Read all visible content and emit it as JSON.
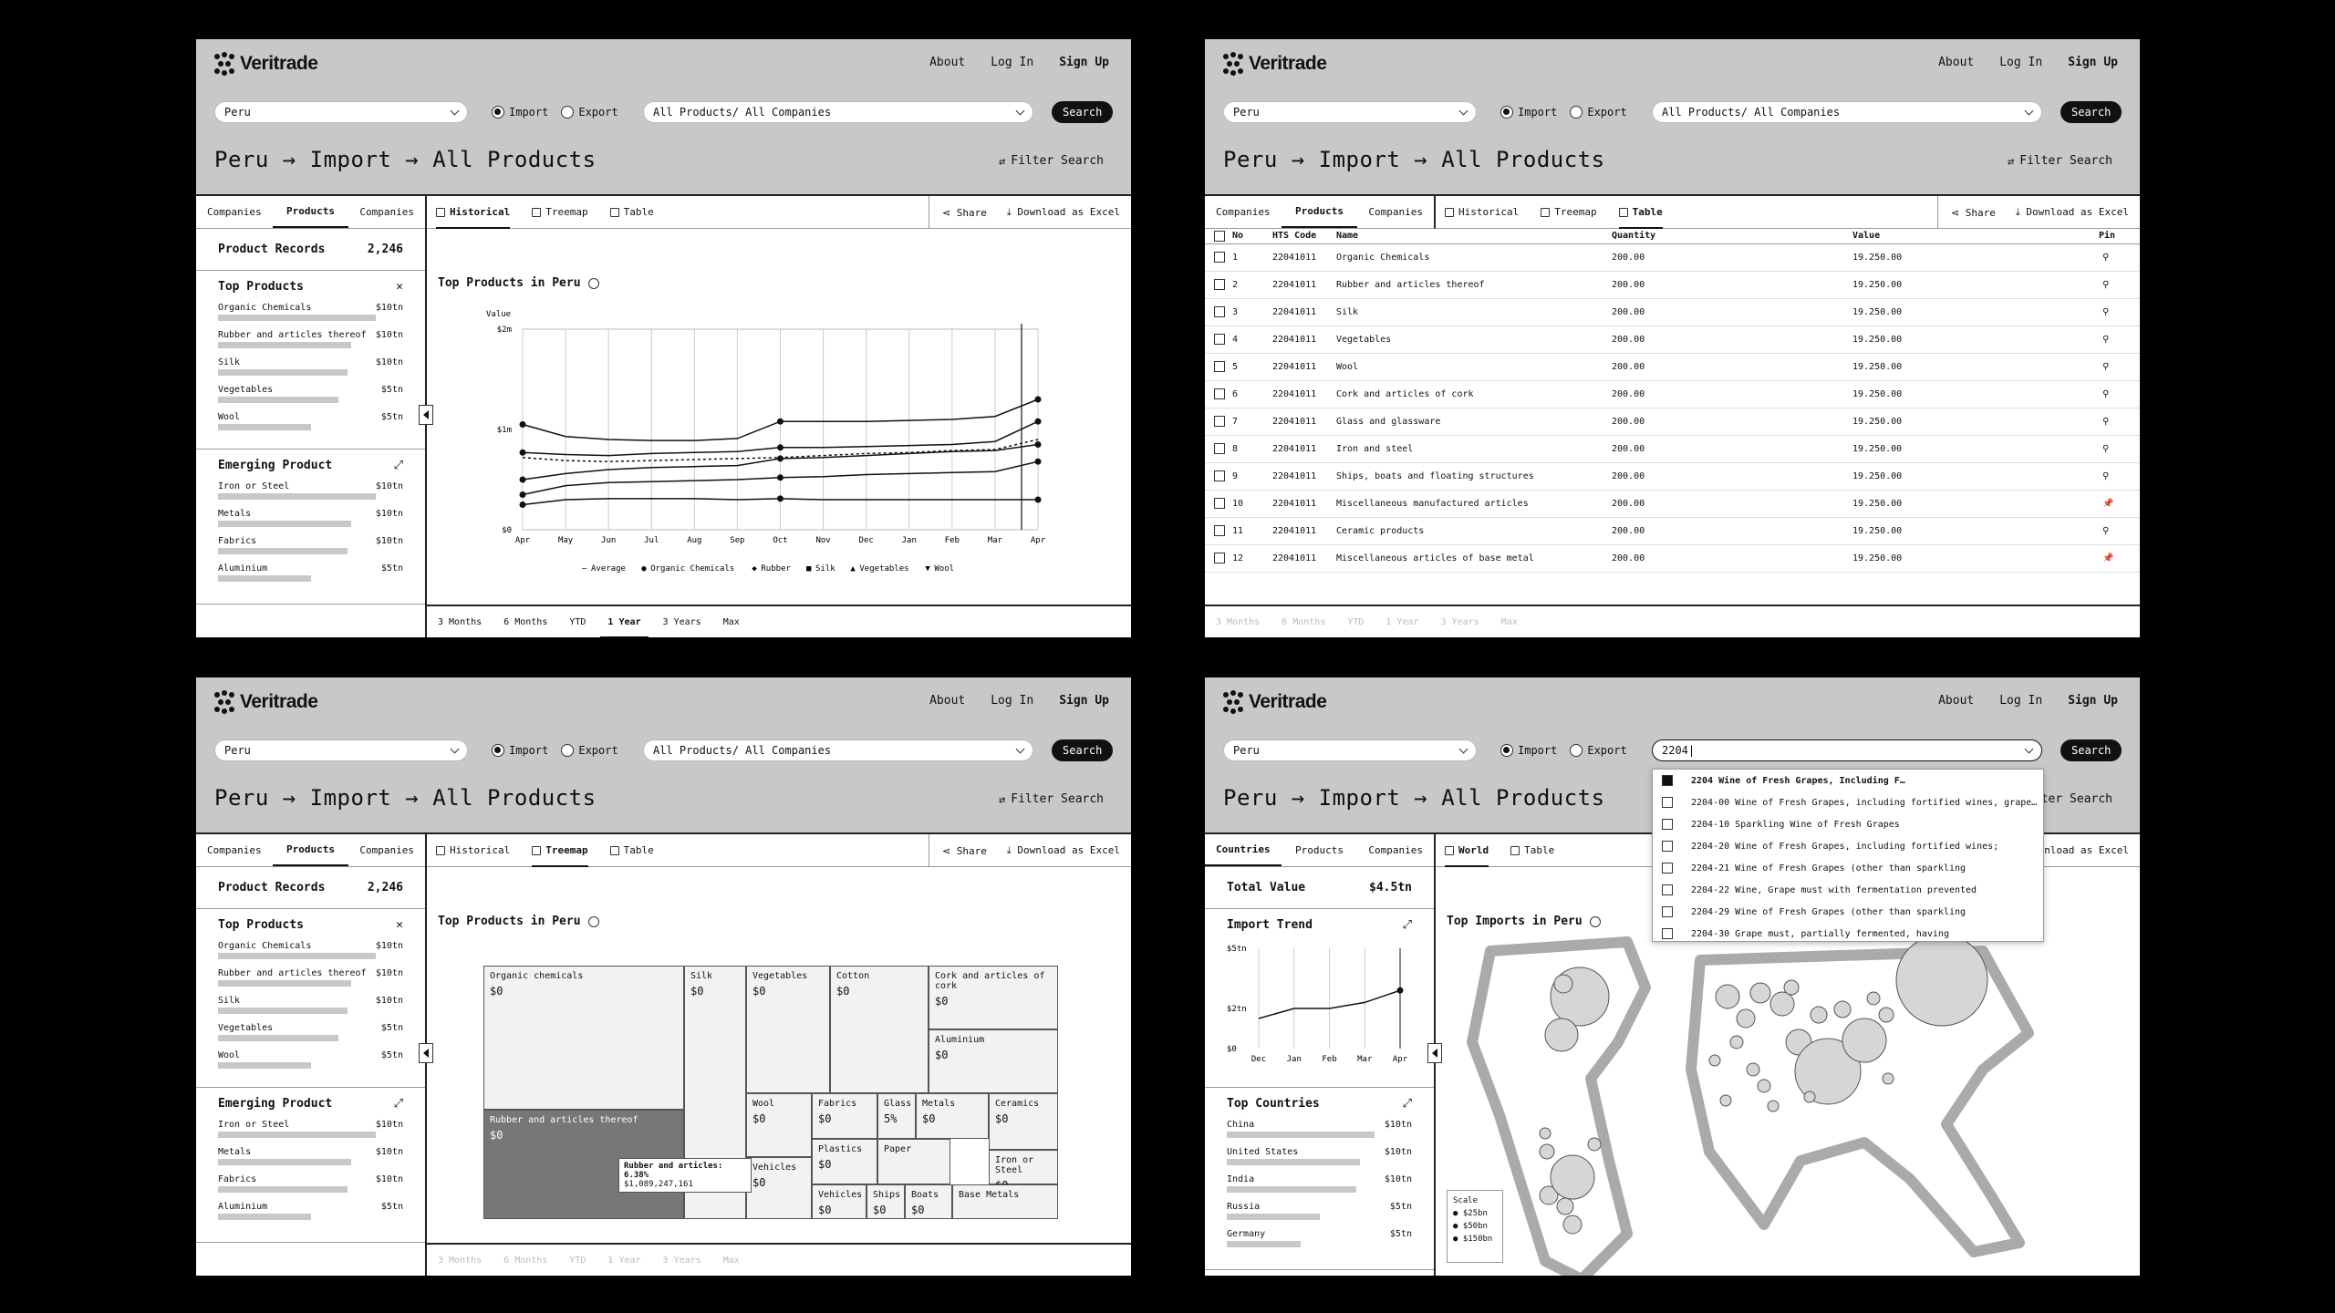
{
  "brand": "Veritrade",
  "nav": {
    "about": "About",
    "login": "Log In",
    "signup": "Sign Up"
  },
  "controls": {
    "country": "Peru",
    "import": "Import",
    "export": "Export",
    "product_filter": "All Products/ All Companies",
    "search": "Search",
    "search_typed": "2204|"
  },
  "breadcrumb": "Peru → Import → All Products",
  "filter_search": "Filter Search",
  "left_tabs": {
    "companies": "Companies",
    "products": "Products",
    "companies2": "Companies"
  },
  "left_tabs_map": {
    "countries": "Countries",
    "products": "Products",
    "companies": "Companies"
  },
  "product_records": {
    "label": "Product Records",
    "value": "2,246"
  },
  "top_products": {
    "title": "Top Products",
    "items": [
      {
        "name": "Organic Chemicals",
        "value": "$10tn",
        "fill": 0.85
      },
      {
        "name": "Rubber and articles thereof",
        "value": "$10tn",
        "fill": 0.72
      },
      {
        "name": "Silk",
        "value": "$10tn",
        "fill": 0.7
      },
      {
        "name": "Vegetables",
        "value": "$5tn",
        "fill": 0.65
      },
      {
        "name": "Wool",
        "value": "$5tn",
        "fill": 0.5
      }
    ]
  },
  "emerging": {
    "title": "Emerging Product",
    "items": [
      {
        "name": "Iron or Steel",
        "value": "$10tn",
        "fill": 0.85
      },
      {
        "name": "Metals",
        "value": "$10tn",
        "fill": 0.72
      },
      {
        "name": "Fabrics",
        "value": "$10tn",
        "fill": 0.7
      },
      {
        "name": "Aluminium",
        "value": "$5tn",
        "fill": 0.5
      }
    ]
  },
  "view_tabs": {
    "historical": "Historical",
    "treemap": "Treemap",
    "table": "Table",
    "world": "World",
    "share": "Share",
    "download": "Download as Excel"
  },
  "chart_title": "Top Products in Peru",
  "map_title": "Top Imports in Peru",
  "ranges": [
    "3 Months",
    "6 Months",
    "YTD",
    "1 Year",
    "3 Years",
    "Max"
  ],
  "chart_data": [
    {
      "type": "line",
      "title": "Top Products in Peru",
      "ylabel": "Value",
      "ylim": [
        0,
        2000000
      ],
      "y_ticks": [
        "$0",
        "$1m",
        "$2m"
      ],
      "x": [
        "Apr",
        "May",
        "Jun",
        "Jul",
        "Aug",
        "Sep",
        "Oct",
        "Nov",
        "Dec",
        "Jan",
        "Feb",
        "Mar",
        "Apr"
      ],
      "series": [
        {
          "name": "Average",
          "values": [
            720000,
            690000,
            680000,
            690000,
            700000,
            710000,
            720000,
            740000,
            760000,
            770000,
            790000,
            800000,
            900000
          ]
        },
        {
          "name": "Organic Chemicals",
          "values": [
            1050000,
            930000,
            900000,
            890000,
            890000,
            910000,
            1080000,
            1080000,
            1080000,
            1090000,
            1100000,
            1130000,
            1300000
          ]
        },
        {
          "name": "Rubber",
          "values": [
            770000,
            750000,
            740000,
            760000,
            770000,
            780000,
            820000,
            820000,
            830000,
            840000,
            850000,
            880000,
            1080000
          ]
        },
        {
          "name": "Silk",
          "values": [
            500000,
            560000,
            600000,
            620000,
            630000,
            640000,
            710000,
            720000,
            740000,
            760000,
            780000,
            790000,
            850000
          ]
        },
        {
          "name": "Vegetables",
          "values": [
            350000,
            440000,
            470000,
            480000,
            490000,
            500000,
            520000,
            530000,
            550000,
            560000,
            570000,
            580000,
            680000
          ]
        },
        {
          "name": "Wool",
          "values": [
            250000,
            300000,
            310000,
            310000,
            310000,
            300000,
            310000,
            300000,
            300000,
            300000,
            300000,
            300000,
            300000
          ]
        }
      ]
    },
    {
      "type": "heatmap",
      "title": "Top Products in Peru",
      "cells": [
        {
          "name": "Organic chemicals",
          "value": "$0"
        },
        {
          "name": "Silk",
          "value": "$0"
        },
        {
          "name": "Vegetables",
          "value": "$0"
        },
        {
          "name": "Cotton",
          "value": "$0"
        },
        {
          "name": "Cork and articles of cork",
          "value": "$0"
        },
        {
          "name": "Aluminium",
          "value": "$0"
        },
        {
          "name": "Rubber and articles thereof",
          "value": "$0"
        },
        {
          "name": "Wool",
          "value": "$0"
        },
        {
          "name": "Fabrics",
          "value": "$0"
        },
        {
          "name": "Glass",
          "value": "5%"
        },
        {
          "name": "Metals",
          "value": "$0"
        },
        {
          "name": "Ceramics",
          "value": "$0"
        },
        {
          "name": "Plastics",
          "value": "$0"
        },
        {
          "name": "Vehicles",
          "value": "$0"
        },
        {
          "name": "Paper",
          "value": ""
        },
        {
          "name": "Iron or Steel",
          "value": "$0"
        },
        {
          "name": "Vehicles",
          "value": "$0"
        },
        {
          "name": "Ships",
          "value": "$0"
        },
        {
          "name": "Boats",
          "value": "$0"
        },
        {
          "name": "Base Metals",
          "value": ""
        }
      ],
      "tooltip": {
        "label": "Rubber and articles: 6.38%",
        "value": "$1,089,247,161"
      }
    },
    {
      "type": "line",
      "title": "Import Trend",
      "y_ticks": [
        "$0",
        "$2tn",
        "$5tn"
      ],
      "x": [
        "Dec",
        "Jan",
        "Feb",
        "Mar",
        "Apr"
      ],
      "values": [
        1.5,
        2.0,
        2.0,
        2.3,
        2.9
      ]
    }
  ],
  "table": {
    "headers": [
      "No",
      "HTS Code",
      "Name",
      "Quantity",
      "Value",
      "Pin"
    ],
    "rows": [
      {
        "no": "1",
        "hts": "22041011",
        "name": "Organic Chemicals",
        "qty": "200.00",
        "val": "19.250.00"
      },
      {
        "no": "2",
        "hts": "22041011",
        "name": "Rubber and articles thereof",
        "qty": "200.00",
        "val": "19.250.00"
      },
      {
        "no": "3",
        "hts": "22041011",
        "name": "Silk",
        "qty": "200.00",
        "val": "19.250.00"
      },
      {
        "no": "4",
        "hts": "22041011",
        "name": "Vegetables",
        "qty": "200.00",
        "val": "19.250.00"
      },
      {
        "no": "5",
        "hts": "22041011",
        "name": "Wool",
        "qty": "200.00",
        "val": "19.250.00"
      },
      {
        "no": "6",
        "hts": "22041011",
        "name": "Cork and articles of cork",
        "qty": "200.00",
        "val": "19.250.00"
      },
      {
        "no": "7",
        "hts": "22041011",
        "name": "Glass and glassware",
        "qty": "200.00",
        "val": "19.250.00"
      },
      {
        "no": "8",
        "hts": "22041011",
        "name": "Iron and steel",
        "qty": "200.00",
        "val": "19.250.00"
      },
      {
        "no": "9",
        "hts": "22041011",
        "name": "Ships, boats and floating structures",
        "qty": "200.00",
        "val": "19.250.00"
      },
      {
        "no": "10",
        "hts": "22041011",
        "name": "Miscellaneous manufactured articles",
        "qty": "200.00",
        "val": "19.250.00"
      },
      {
        "no": "11",
        "hts": "22041011",
        "name": "Ceramic products",
        "qty": "200.00",
        "val": "19.250.00"
      },
      {
        "no": "12",
        "hts": "22041011",
        "name": "Miscellaneous articles of base metal",
        "qty": "200.00",
        "val": "19.250.00"
      }
    ]
  },
  "dropdown": [
    "2204 Wine of Fresh Grapes, Including F…",
    "2204-00 Wine of Fresh Grapes, including fortified wines, grape…",
    "2204-10 Sparkling Wine of Fresh Grapes",
    "2204-20 Wine of Fresh Grapes, including fortified wines;",
    "2204-21 Wine of Fresh Grapes (other than sparkling",
    "2204-22 Wine, Grape must with fermentation prevented",
    "2204-29 Wine of Fresh Grapes (other than sparkling",
    "2204-30 Grape must, partially fermented, having"
  ],
  "total_value": {
    "label": "Total Value",
    "value": "$4.5tn"
  },
  "import_trend": "Import Trend",
  "top_countries": {
    "title": "Top Countries",
    "items": [
      {
        "name": "China",
        "value": "$10tn",
        "fill": 0.8
      },
      {
        "name": "United States",
        "value": "$10tn",
        "fill": 0.72
      },
      {
        "name": "India",
        "value": "$10tn",
        "fill": 0.7
      },
      {
        "name": "Russia",
        "value": "$5tn",
        "fill": 0.5
      },
      {
        "name": "Germany",
        "value": "$5tn",
        "fill": 0.4
      }
    ]
  },
  "map_scale": {
    "title": "Scale",
    "items": [
      "$25bn",
      "$50bn",
      "$150bn"
    ]
  }
}
